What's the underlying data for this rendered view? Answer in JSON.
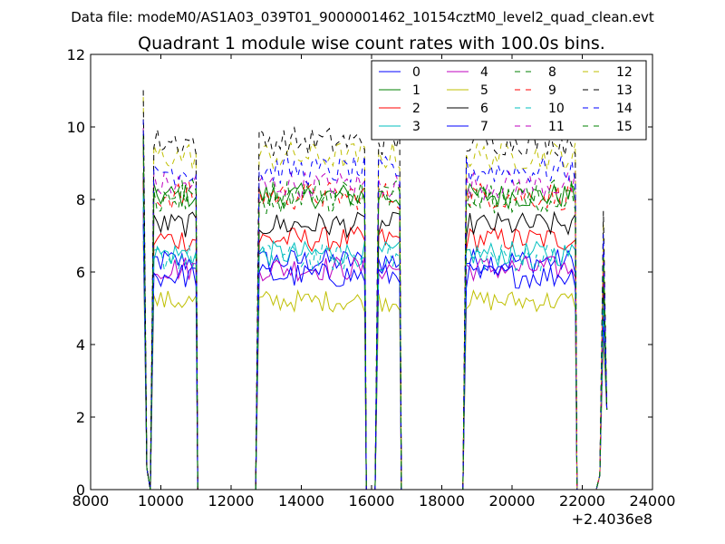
{
  "chart_data": {
    "type": "line",
    "suptitle": "Data file: modeM0/AS1A03_039T01_9000001462_10154cztM0_level2_quad_clean.evt",
    "title": "Quadrant 1 module wise count rates with 100.0s bins.",
    "xlabel": "",
    "ylabel": "",
    "x_offset_label": "+2.4036e8",
    "xlim": [
      8000,
      24000
    ],
    "ylim": [
      0,
      12
    ],
    "x_ticks": [
      8000,
      10000,
      12000,
      14000,
      16000,
      18000,
      20000,
      22000,
      24000
    ],
    "y_ticks": [
      0,
      2,
      4,
      6,
      8,
      10,
      12
    ],
    "x_tick_labels": [
      "8000",
      "10000",
      "12000",
      "14000",
      "16000",
      "18000",
      "20000",
      "22000",
      "24000"
    ],
    "y_tick_labels": [
      "0",
      "2",
      "4",
      "6",
      "8",
      "10",
      "12"
    ],
    "legend_position": "top-right",
    "segments": [
      {
        "start": 9500,
        "end": 11000,
        "bin": 100
      },
      {
        "start": 12800,
        "end": 15800,
        "bin": 100
      },
      {
        "start": 16200,
        "end": 16800,
        "bin": 100
      },
      {
        "start": 18700,
        "end": 21800,
        "bin": 100
      },
      {
        "start": 22500,
        "end": 22700,
        "bin": 100
      }
    ],
    "gap_level": 0,
    "series": [
      {
        "name": "0",
        "color": "#0000ff",
        "dash": "solid",
        "level": 6.3,
        "amp": 0.35
      },
      {
        "name": "1",
        "color": "#008000",
        "dash": "solid",
        "level": 8.1,
        "amp": 0.35
      },
      {
        "name": "2",
        "color": "#ff0000",
        "dash": "solid",
        "level": 6.9,
        "amp": 0.35
      },
      {
        "name": "3",
        "color": "#00bfbf",
        "dash": "solid",
        "level": 6.5,
        "amp": 0.35
      },
      {
        "name": "4",
        "color": "#bf00bf",
        "dash": "solid",
        "level": 6.1,
        "amp": 0.35
      },
      {
        "name": "5",
        "color": "#bfbf00",
        "dash": "solid",
        "level": 5.2,
        "amp": 0.3
      },
      {
        "name": "6",
        "color": "#000000",
        "dash": "solid",
        "level": 7.3,
        "amp": 0.35
      },
      {
        "name": "7",
        "color": "#0000ff",
        "dash": "solid",
        "level": 5.9,
        "amp": 0.35
      },
      {
        "name": "8",
        "color": "#008000",
        "dash": "dashed",
        "level": 8.2,
        "amp": 0.4
      },
      {
        "name": "9",
        "color": "#ff0000",
        "dash": "dashed",
        "level": 8.1,
        "amp": 0.4
      },
      {
        "name": "10",
        "color": "#00bfbf",
        "dash": "dashed",
        "level": 6.4,
        "amp": 0.4
      },
      {
        "name": "11",
        "color": "#bf00bf",
        "dash": "dashed",
        "level": 8.4,
        "amp": 0.4
      },
      {
        "name": "12",
        "color": "#bfbf00",
        "dash": "dashed",
        "level": 9.2,
        "amp": 0.4
      },
      {
        "name": "13",
        "color": "#000000",
        "dash": "dashed",
        "level": 9.6,
        "amp": 0.4
      },
      {
        "name": "14",
        "color": "#0000ff",
        "dash": "dashed",
        "level": 8.8,
        "amp": 0.4
      },
      {
        "name": "15",
        "color": "#008000",
        "dash": "dashed",
        "level": 8.0,
        "amp": 0.4
      }
    ]
  }
}
